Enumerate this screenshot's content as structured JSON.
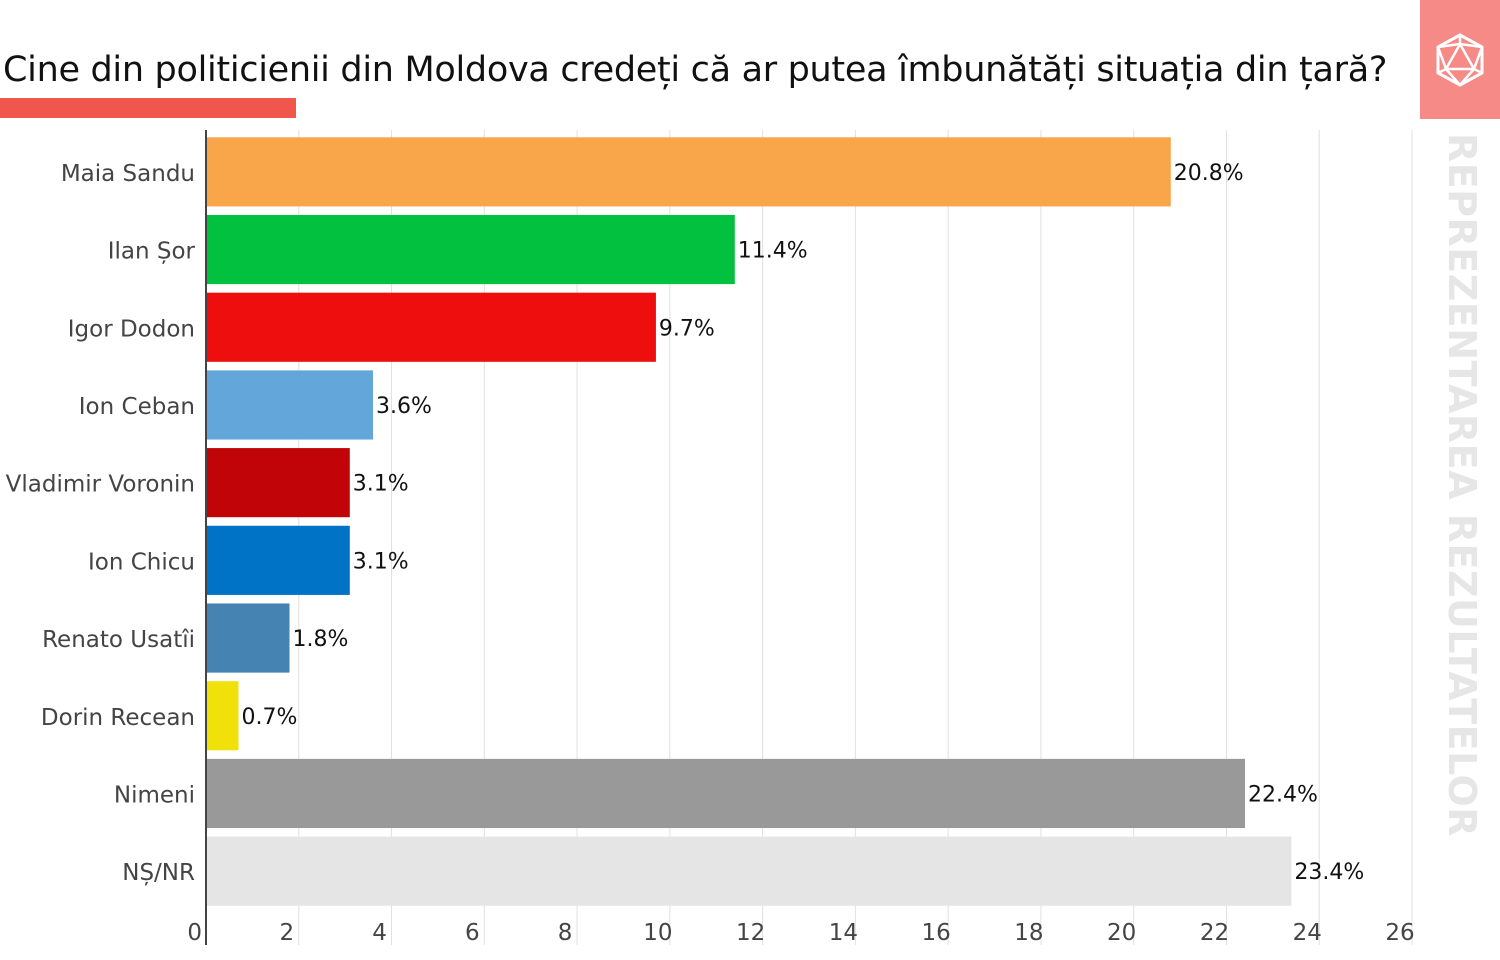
{
  "title": "Cine din politicienii din Moldova credeți că ar putea îmbunătăți situația din țară?",
  "side_label": "REPREZENTAREA REZULTATELOR",
  "colors": {
    "accent": "#f0564c",
    "logo_bg": "#f58a87",
    "grid": "#e0e0e0",
    "axis": "#444444"
  },
  "chart_data": {
    "type": "bar",
    "orientation": "horizontal",
    "title": "Cine din politicienii din Moldova credeți că ar putea îmbunătăți situația din țară?",
    "xlabel": "",
    "ylabel": "",
    "xlim": [
      0,
      26
    ],
    "xticks": [
      0,
      2,
      4,
      6,
      8,
      10,
      12,
      14,
      16,
      18,
      20,
      22,
      24,
      26
    ],
    "grid": true,
    "categories": [
      "Maia Sandu",
      "Ilan Șor",
      "Igor Dodon",
      "Ion Ceban",
      "Vladimir Voronin",
      "Ion Chicu",
      "Renato Usatîi",
      "Dorin Recean",
      "Nimeni",
      "NȘ/NR"
    ],
    "values": [
      20.8,
      11.4,
      9.7,
      3.6,
      3.1,
      3.1,
      1.8,
      0.7,
      22.4,
      23.4
    ],
    "value_labels": [
      "20.8%",
      "11.4%",
      "9.7%",
      "3.6%",
      "3.1%",
      "3.1%",
      "1.8%",
      "0.7%",
      "22.4%",
      "23.4%"
    ],
    "bar_colors": [
      "#f9a54a",
      "#02c13e",
      "#ef0e0e",
      "#63a7da",
      "#c10407",
      "#0073c7",
      "#4584b2",
      "#f1e10b",
      "#999999",
      "#e5e5e5"
    ]
  }
}
